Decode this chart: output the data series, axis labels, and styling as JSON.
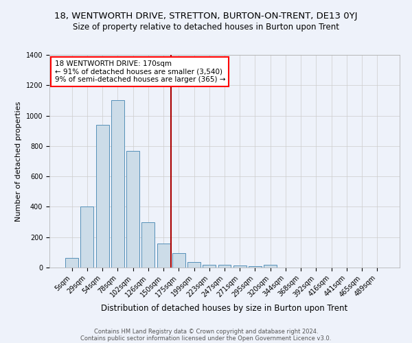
{
  "title": "18, WENTWORTH DRIVE, STRETTON, BURTON-ON-TRENT, DE13 0YJ",
  "subtitle": "Size of property relative to detached houses in Burton upon Trent",
  "xlabel": "Distribution of detached houses by size in Burton upon Trent",
  "ylabel": "Number of detached properties",
  "footnote1": "Contains HM Land Registry data © Crown copyright and database right 2024.",
  "footnote2": "Contains public sector information licensed under the Open Government Licence v3.0.",
  "bar_labels": [
    "5sqm",
    "29sqm",
    "54sqm",
    "78sqm",
    "102sqm",
    "126sqm",
    "150sqm",
    "175sqm",
    "199sqm",
    "223sqm",
    "247sqm",
    "271sqm",
    "295sqm",
    "320sqm",
    "344sqm",
    "368sqm",
    "392sqm",
    "416sqm",
    "441sqm",
    "465sqm",
    "489sqm"
  ],
  "bar_heights": [
    65,
    400,
    940,
    1100,
    770,
    300,
    160,
    95,
    38,
    18,
    18,
    13,
    8,
    18,
    0,
    0,
    0,
    0,
    0,
    0,
    0
  ],
  "bar_color": "#ccdce8",
  "bar_edge_color": "#5590b8",
  "highlight_bar_index": 7,
  "highlight_color": "#aa0000",
  "annotation_line1": "18 WENTWORTH DRIVE: 170sqm",
  "annotation_line2": "← 91% of detached houses are smaller (3,540)",
  "annotation_line3": "9% of semi-detached houses are larger (365) →",
  "background_color": "#eef2fa",
  "plot_bg_color": "#eef2fa",
  "ylim": [
    0,
    1400
  ],
  "yticks": [
    0,
    200,
    400,
    600,
    800,
    1000,
    1200,
    1400
  ],
  "grid_color": "#cccccc",
  "title_fontsize": 9.5,
  "subtitle_fontsize": 8.5,
  "xlabel_fontsize": 8.5,
  "ylabel_fontsize": 8,
  "tick_fontsize": 7,
  "annotation_fontsize": 7.5,
  "footnote_fontsize": 6,
  "footnote_color": "#555555"
}
